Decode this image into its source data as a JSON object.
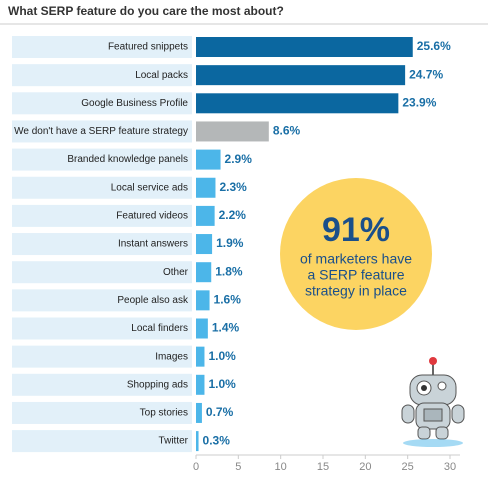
{
  "chart_data": {
    "type": "barh",
    "title": "What SERP feature do you care the most about?",
    "categories": [
      "Featured snippets",
      "Local packs",
      "Google Business Profile",
      "We don't have a SERP feature strategy",
      "Branded knowledge panels",
      "Local service ads",
      "Featured videos",
      "Instant answers",
      "Other",
      "People also ask",
      "Local finders",
      "Images",
      "Shopping ads",
      "Top stories",
      "Twitter"
    ],
    "values": [
      25.6,
      24.7,
      23.9,
      8.6,
      2.9,
      2.3,
      2.2,
      1.9,
      1.8,
      1.6,
      1.4,
      1.0,
      1.0,
      0.7,
      0.3
    ],
    "value_labels": [
      "25.6%",
      "24.7%",
      "23.9%",
      "8.6%",
      "2.9%",
      "2.3%",
      "2.2%",
      "1.9%",
      "1.8%",
      "1.6%",
      "1.4%",
      "1.0%",
      "1.0%",
      "0.7%",
      "0.3%"
    ],
    "colors": [
      "#0b67a0",
      "#0b67a0",
      "#0b67a0",
      "#b4b7b8",
      "#4cb6e9",
      "#4cb6e9",
      "#4cb6e9",
      "#4cb6e9",
      "#4cb6e9",
      "#4cb6e9",
      "#4cb6e9",
      "#4cb6e9",
      "#4cb6e9",
      "#4cb6e9",
      "#4cb6e9"
    ],
    "xlim": [
      0,
      30
    ],
    "xticks": [
      0,
      5,
      10,
      15,
      20,
      25,
      30
    ],
    "annotation": {
      "headline": "91%",
      "lines": [
        "of marketers have",
        "a SERP feature",
        "strategy in place"
      ]
    }
  }
}
